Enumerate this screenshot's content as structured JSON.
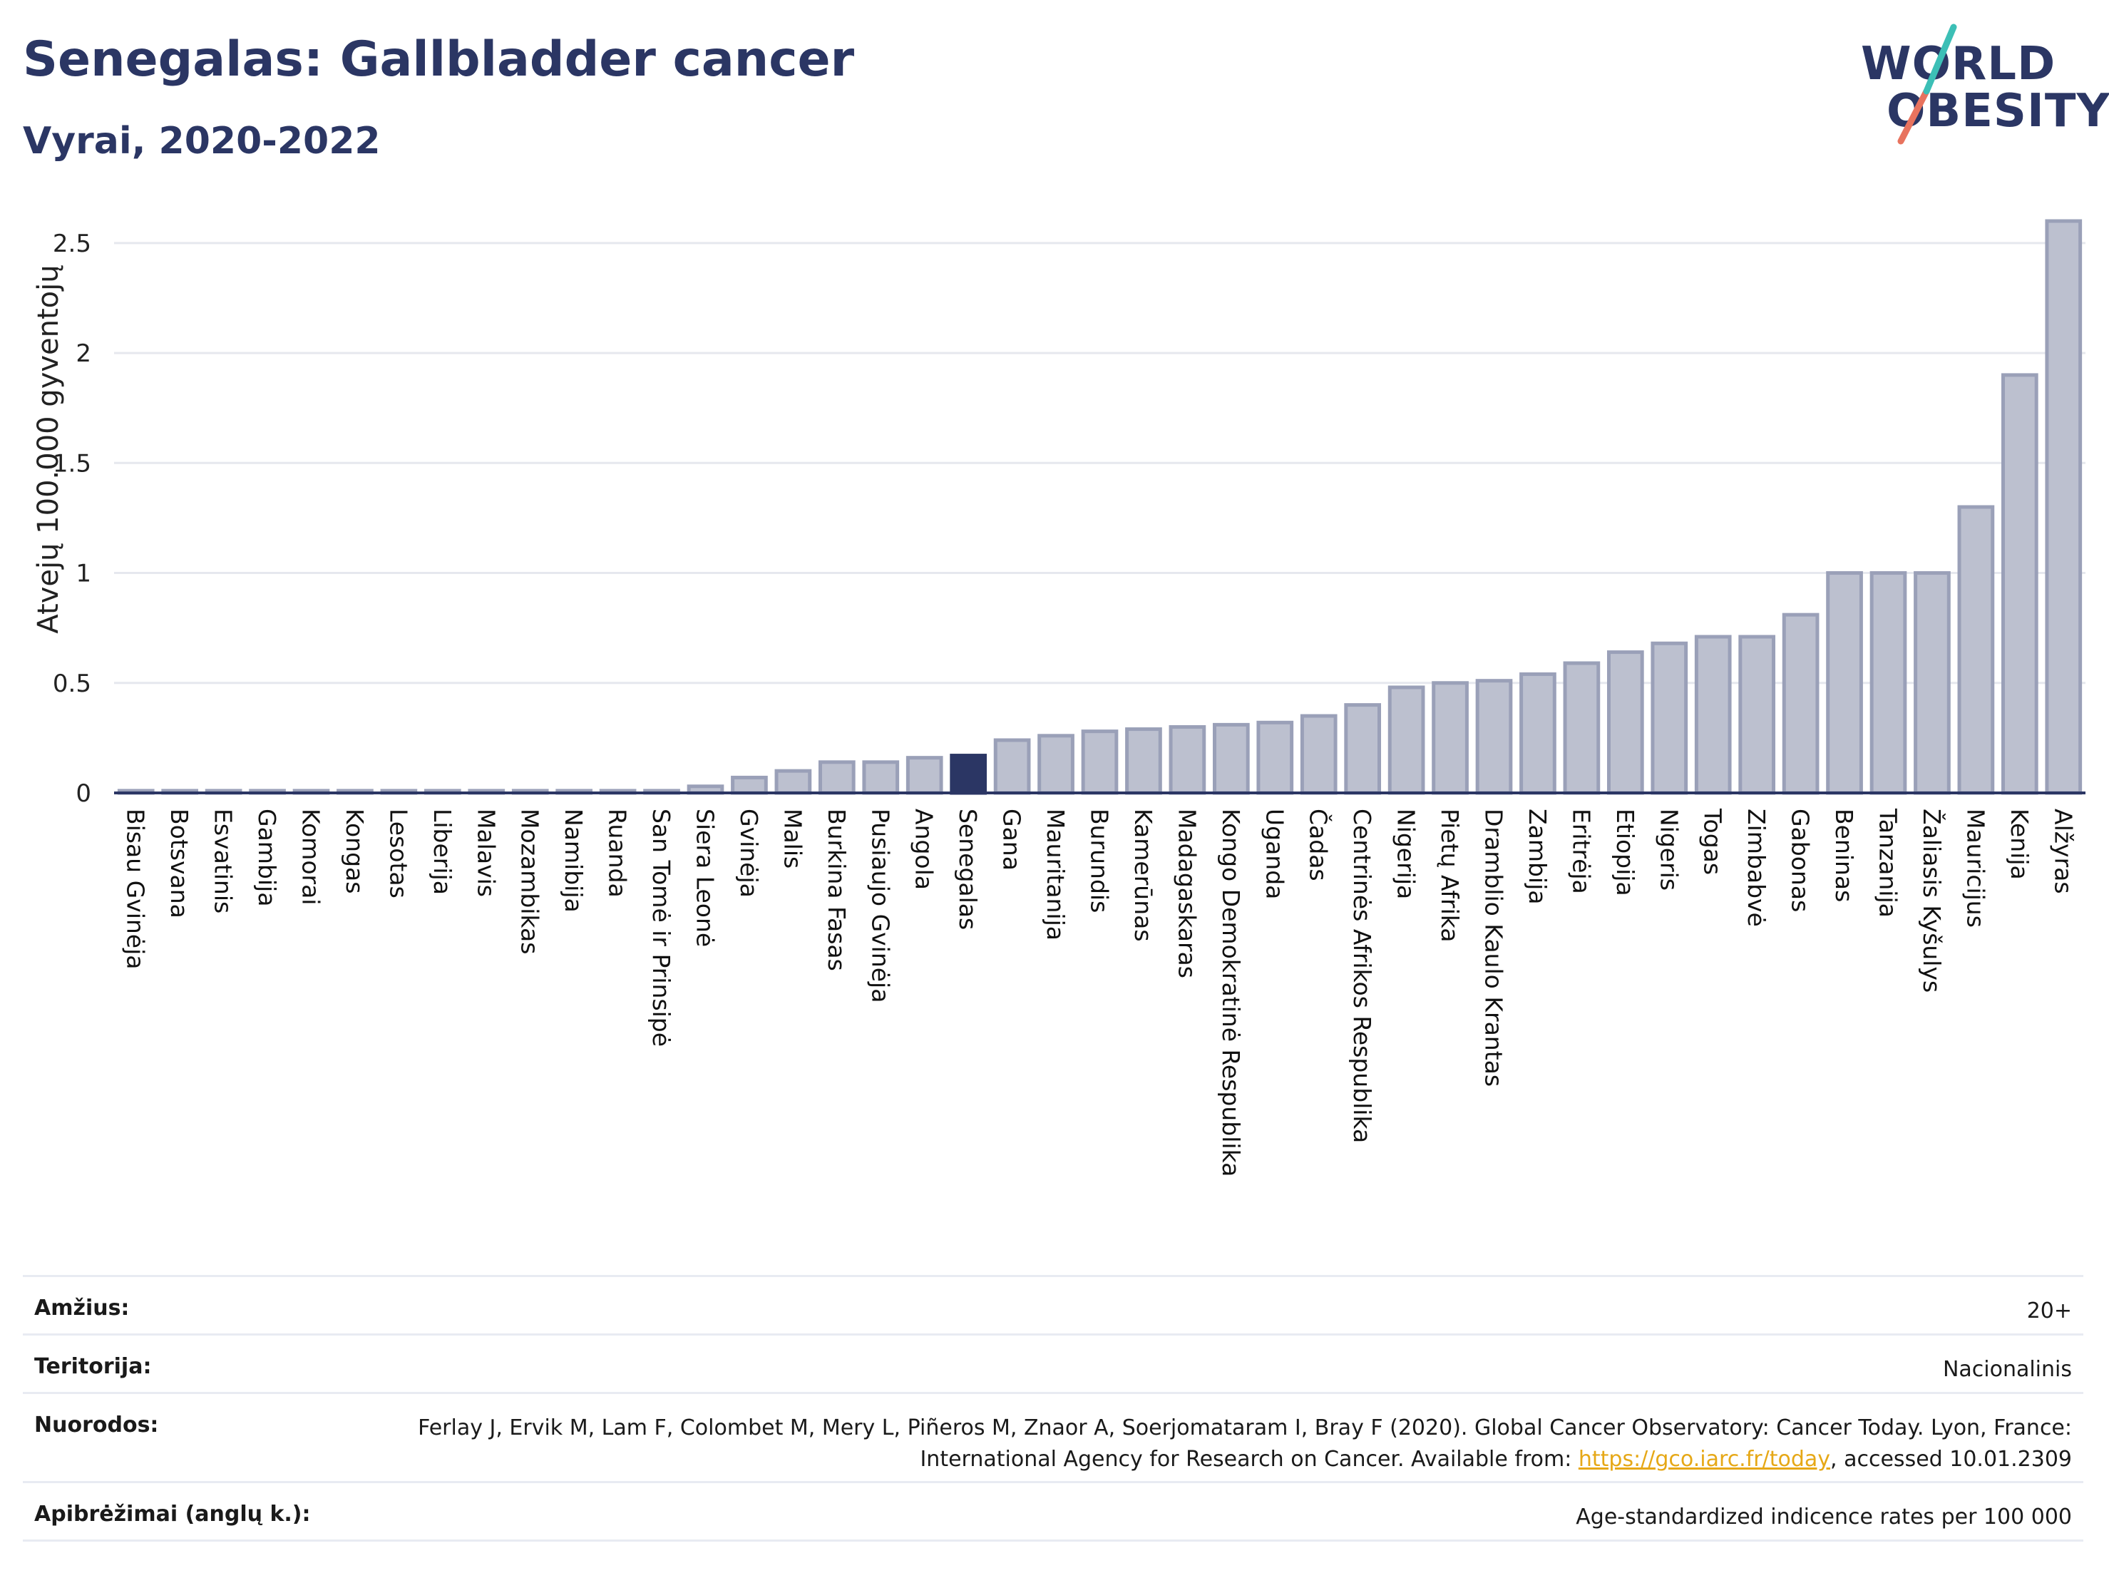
{
  "header": {
    "title": "Senegalas: Gallbladder cancer",
    "subtitle": "Vyrai, 2020-2022",
    "logo_top": "WORLD",
    "logo_bottom": "OBESITY"
  },
  "colors": {
    "highlight_bar": "#2b3664",
    "bar_fill": "#bcc0cf",
    "bar_stroke": "#9aa0b8",
    "title": "#2b3664",
    "link": "#e6a817"
  },
  "chart_data": {
    "type": "bar",
    "ylabel": "Atvejų 100.000 gyventojų",
    "ylim": [
      0,
      2.6
    ],
    "yticks": [
      0,
      0.5,
      1,
      1.5,
      2,
      2.5
    ],
    "ytick_labels": [
      "0",
      "0.5",
      "1",
      "1.5",
      "2",
      "2.5"
    ],
    "grid": true,
    "highlight": "Senegalas",
    "categories": [
      "Bisau Gvinėja",
      "Botsvana",
      "Esvatinis",
      "Gambija",
      "Komorai",
      "Kongas",
      "Lesotas",
      "Liberija",
      "Malavis",
      "Mozambikas",
      "Namibija",
      "Ruanda",
      "San Tomė ir Prinsipė",
      "Siera Leonė",
      "Gvinėja",
      "Malis",
      "Burkina Fasas",
      "Pusiaujo Gvinėja",
      "Angola",
      "Senegalas",
      "Gana",
      "Mauritanija",
      "Burundis",
      "Kamerūnas",
      "Madagaskaras",
      "Kongo Demokratinė Respublika",
      "Uganda",
      "Čadas",
      "Centrinės Afrikos Respublika",
      "Nigerija",
      "Pietų Afrika",
      "Dramblio Kaulo Krantas",
      "Zambija",
      "Eritrėja",
      "Etiopija",
      "Nigeris",
      "Togas",
      "Zimbabvė",
      "Gabonas",
      "Beninas",
      "Tanzanija",
      "Žaliasis Kyšulys",
      "Mauricijus",
      "Kenija",
      "Alžyras"
    ],
    "values": [
      0.01,
      0.01,
      0.01,
      0.01,
      0.01,
      0.01,
      0.01,
      0.01,
      0.01,
      0.01,
      0.01,
      0.01,
      0.01,
      0.03,
      0.07,
      0.1,
      0.14,
      0.14,
      0.16,
      0.17,
      0.24,
      0.26,
      0.28,
      0.29,
      0.3,
      0.31,
      0.32,
      0.35,
      0.4,
      0.48,
      0.5,
      0.51,
      0.54,
      0.59,
      0.64,
      0.68,
      0.71,
      0.71,
      0.81,
      1.0,
      1.0,
      1.0,
      1.3,
      1.9,
      2.6
    ]
  },
  "info": [
    {
      "key": "Amžius:",
      "value": "20+"
    },
    {
      "key": "Teritorija:",
      "value": "Nacionalinis"
    },
    {
      "key": "Nuorodos:",
      "value": "Ferlay J, Ervik M, Lam F, Colombet M, Mery L, Piñeros M, Znaor A, Soerjomataram I, Bray F (2020). Global Cancer Observatory: Cancer Today. Lyon, France: International Agency for Research on Cancer. Available from: ",
      "link": "https://gco.iarc.fr/today",
      "suffix": ", accessed 10.01.2309"
    },
    {
      "key": "Apibrėžimai (anglų k.):",
      "value": "Age-standardized indicence rates per 100 000"
    }
  ]
}
